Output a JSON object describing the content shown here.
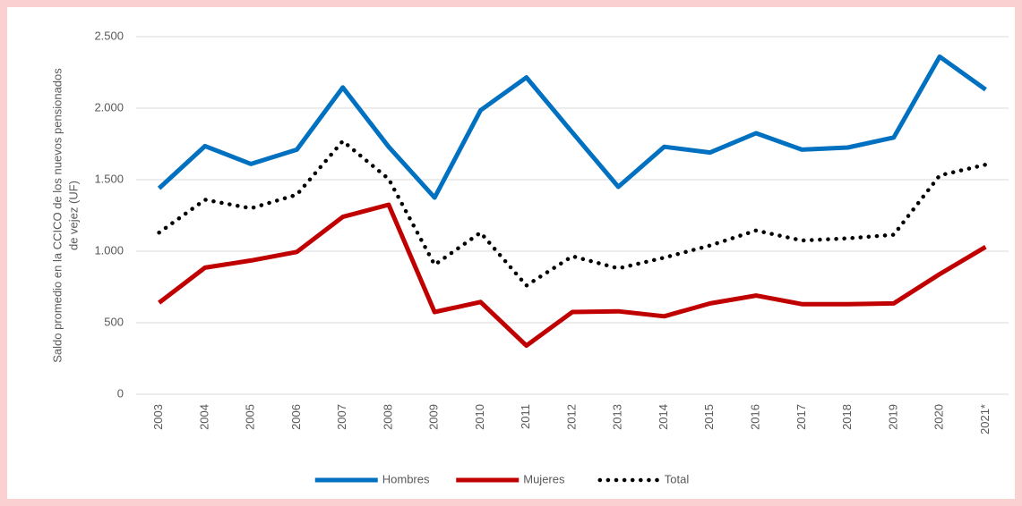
{
  "chart_data": {
    "type": "line",
    "y_label": [
      "Saldo promedio en la CCICO de los nuevos pensionados",
      "de vejez (UF)"
    ],
    "categories": [
      "2003",
      "2004",
      "2005",
      "2006",
      "2007",
      "2008",
      "2009",
      "2010",
      "2011",
      "2012",
      "2013",
      "2014",
      "2015",
      "2016",
      "2017",
      "2018",
      "2019",
      "2020",
      "2021*"
    ],
    "series": [
      {
        "name": "Hombres",
        "color": "#0070c0",
        "style": "solid",
        "values": [
          1440,
          1735,
          1610,
          1710,
          2145,
          1730,
          1375,
          1985,
          2215,
          1830,
          1450,
          1730,
          1690,
          1825,
          1710,
          1725,
          1795,
          2360,
          2130
        ]
      },
      {
        "name": "Mujeres",
        "color": "#c00000",
        "style": "solid",
        "values": [
          640,
          885,
          935,
          995,
          1240,
          1325,
          575,
          645,
          340,
          575,
          580,
          545,
          635,
          690,
          630,
          630,
          635,
          840,
          1030
        ]
      },
      {
        "name": "Total",
        "color": "#000000",
        "style": "dotted",
        "values": [
          1130,
          1360,
          1300,
          1395,
          1770,
          1505,
          905,
          1130,
          760,
          965,
          880,
          955,
          1040,
          1145,
          1075,
          1090,
          1115,
          1530,
          1605
        ]
      }
    ],
    "ylim": [
      0,
      2500
    ],
    "yticks": [
      0,
      500,
      {
        "value": 1000,
        "label": "1.000"
      },
      {
        "value": 1500,
        "label": "1.500"
      },
      {
        "value": 2000,
        "label": "2.000"
      },
      {
        "value": 2500,
        "label": "2.500"
      }
    ],
    "grid": true,
    "legend": "bottom"
  }
}
